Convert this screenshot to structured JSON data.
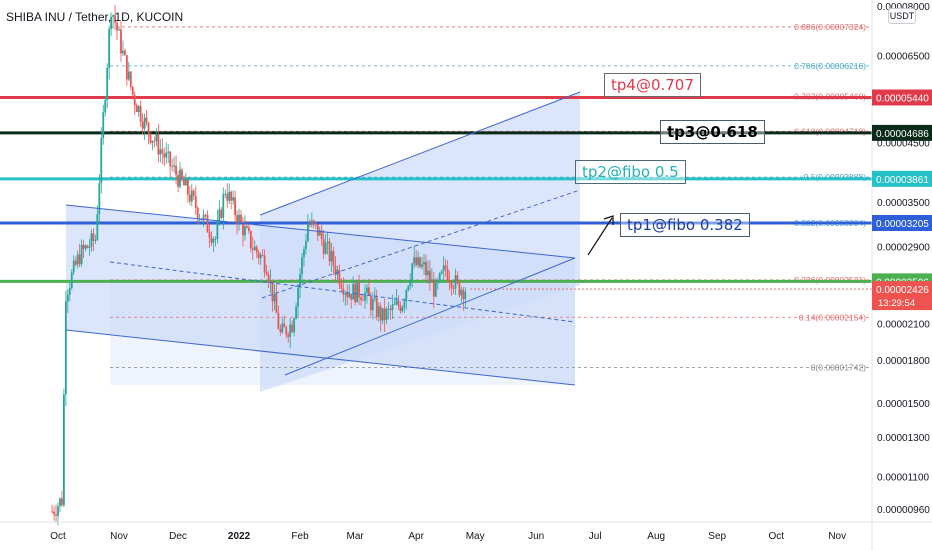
{
  "header": {
    "title": "SHIBA INU / Tether, 1D, KUCOIN",
    "currency": "USDT"
  },
  "colors": {
    "candle_up": "#26a69a",
    "candle_down": "#ef5350",
    "channel_fill": "#cfdcfa",
    "channel_line": "#3e66d4",
    "fib": "#e56b6b",
    "tp4": "#e03a4a",
    "tp3": "#0a2a1a",
    "tp2": "#26c0c8",
    "tp1": "#2d5fd8",
    "support": "#4caf50"
  },
  "chart_data": {
    "type": "candlestick",
    "title": "SHIBA INU / Tether, 1D, KUCOIN",
    "log_scale": true,
    "grid": false,
    "x_ticks": [
      "Oct",
      "Nov",
      "Dec",
      "2022",
      "Feb",
      "Mar",
      "Apr",
      "May",
      "Jun",
      "Jul",
      "Aug",
      "Sep",
      "Oct",
      "Nov"
    ],
    "y_ticks": [
      "0.00008000",
      "0.00006500",
      "0.00004500",
      "0.00003500",
      "0.00002900",
      "0.00002100",
      "0.00001800",
      "0.00001500",
      "0.00001300",
      "0.00001100",
      "0.00000960"
    ],
    "price_path": [
      {
        "date": "2021-09-28",
        "price": 9.5e-06
      },
      {
        "date": "2021-10-03",
        "price": 1e-05
      },
      {
        "date": "2021-10-05",
        "price": 2.4e-05
      },
      {
        "date": "2021-10-12",
        "price": 2.8e-05
      },
      {
        "date": "2021-10-20",
        "price": 3e-05
      },
      {
        "date": "2021-10-24",
        "price": 5e-05
      },
      {
        "date": "2021-10-28",
        "price": 8e-05
      },
      {
        "date": "2021-11-01",
        "price": 7e-05
      },
      {
        "date": "2021-11-08",
        "price": 5.5e-05
      },
      {
        "date": "2021-11-15",
        "price": 4.8e-05
      },
      {
        "date": "2021-11-25",
        "price": 4.2e-05
      },
      {
        "date": "2021-12-05",
        "price": 3.7e-05
      },
      {
        "date": "2021-12-15",
        "price": 3.2e-05
      },
      {
        "date": "2021-12-20",
        "price": 3e-05
      },
      {
        "date": "2021-12-25",
        "price": 3.7e-05
      },
      {
        "date": "2021-12-31",
        "price": 3.3e-05
      },
      {
        "date": "2022-01-08",
        "price": 2.9e-05
      },
      {
        "date": "2022-01-15",
        "price": 2.7e-05
      },
      {
        "date": "2022-01-22",
        "price": 2e-05
      },
      {
        "date": "2022-01-28",
        "price": 2.1e-05
      },
      {
        "date": "2022-02-05",
        "price": 3.2e-05
      },
      {
        "date": "2022-02-10",
        "price": 3.1e-05
      },
      {
        "date": "2022-02-18",
        "price": 2.7e-05
      },
      {
        "date": "2022-02-25",
        "price": 2.4e-05
      },
      {
        "date": "2022-03-05",
        "price": 2.4e-05
      },
      {
        "date": "2022-03-15",
        "price": 2.15e-05
      },
      {
        "date": "2022-03-25",
        "price": 2.3e-05
      },
      {
        "date": "2022-03-30",
        "price": 2.7e-05
      },
      {
        "date": "2022-04-05",
        "price": 2.65e-05
      },
      {
        "date": "2022-04-11",
        "price": 2.4e-05
      },
      {
        "date": "2022-04-16",
        "price": 2.65e-05
      },
      {
        "date": "2022-04-22",
        "price": 2.45e-05
      },
      {
        "date": "2022-04-26",
        "price": 2.43e-05
      }
    ],
    "fib_levels": [
      {
        "ratio": "0.886",
        "price": 7.324e-05
      },
      {
        "ratio": "0.786",
        "price": 6.216e-05
      },
      {
        "ratio": "0.707",
        "price": 5.46e-05
      },
      {
        "ratio": "0.618",
        "price": 4.718e-05
      },
      {
        "ratio": "0.5",
        "price": 3.888e-05
      },
      {
        "ratio": "0.382",
        "price": 3.204e-05
      },
      {
        "ratio": "0.236",
        "price": 2.521e-05
      },
      {
        "ratio": "0.14",
        "price": 2.154e-05
      },
      {
        "ratio": "0",
        "price": 1.742e-05
      }
    ],
    "horizontal_lines": [
      {
        "price": 5.44e-05,
        "color": "#e03a4a",
        "label": "0.00005440"
      },
      {
        "price": 4.686e-05,
        "color": "#0a2a1a",
        "label": "0.00004686"
      },
      {
        "price": 3.861e-05,
        "color": "#26c0c8",
        "label": "0.00003861"
      },
      {
        "price": 3.205e-05,
        "color": "#2d5fd8",
        "label": "0.00003205"
      },
      {
        "price": 2.506e-05,
        "color": "#4caf50",
        "label": "0.00002506"
      }
    ],
    "current": {
      "price": "0.00002426",
      "countdown": "13:29:54"
    }
  },
  "annotations": {
    "tp4": "tp4@0.707",
    "tp3": "tp3@0.618",
    "tp2": "tp2@fibo 0.5",
    "tp1": "tp1@fibo 0.382"
  }
}
